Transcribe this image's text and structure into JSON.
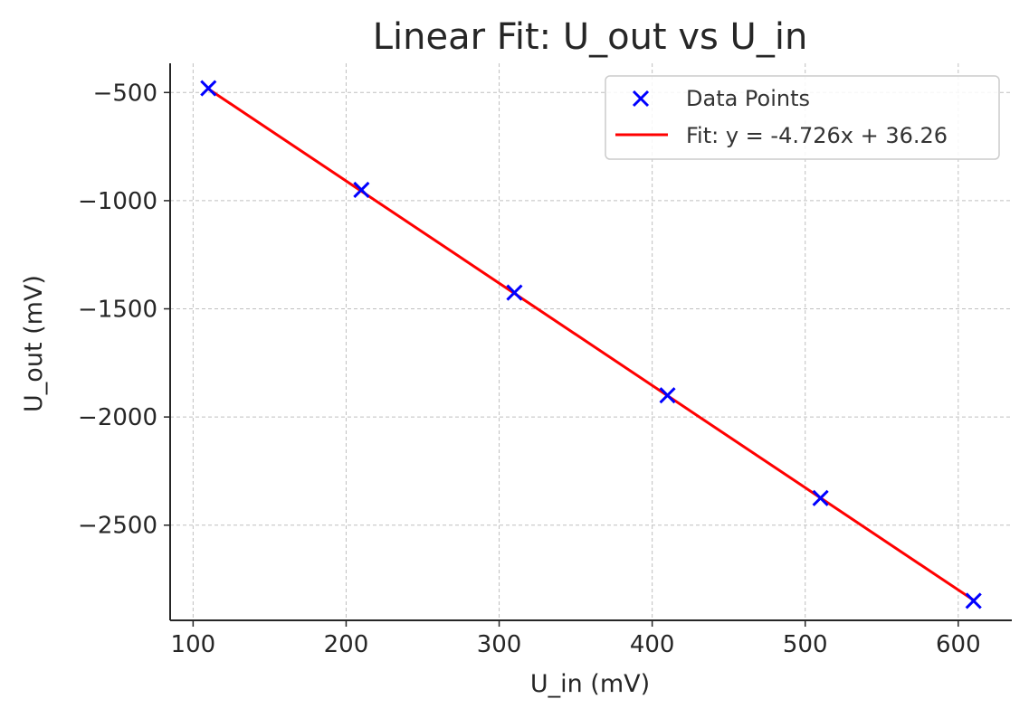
{
  "chart_data": {
    "type": "scatter",
    "title": "Linear Fit: U_out vs U_in",
    "xlabel": "U_in (mV)",
    "ylabel": "U_out (mV)",
    "xlim": [
      85,
      635
    ],
    "ylim": [
      -2940,
      -365
    ],
    "x_ticks": [
      100,
      200,
      300,
      400,
      500,
      600
    ],
    "y_ticks": [
      -500,
      -1000,
      -1500,
      -2000,
      -2500
    ],
    "grid": true,
    "legend_position": "top-right",
    "series": [
      {
        "name": "Data Points",
        "kind": "scatter",
        "marker": "x",
        "color": "#0000ff",
        "x": [
          110,
          210,
          310,
          410,
          510,
          610
        ],
        "y": [
          -480,
          -950,
          -1425,
          -1900,
          -2375,
          -2850
        ]
      },
      {
        "name": "Fit: y = -4.726x + 36.26",
        "kind": "line",
        "color": "#ff0000",
        "x": [
          110,
          610
        ],
        "y": [
          -483.6,
          -2846.6
        ]
      }
    ]
  }
}
